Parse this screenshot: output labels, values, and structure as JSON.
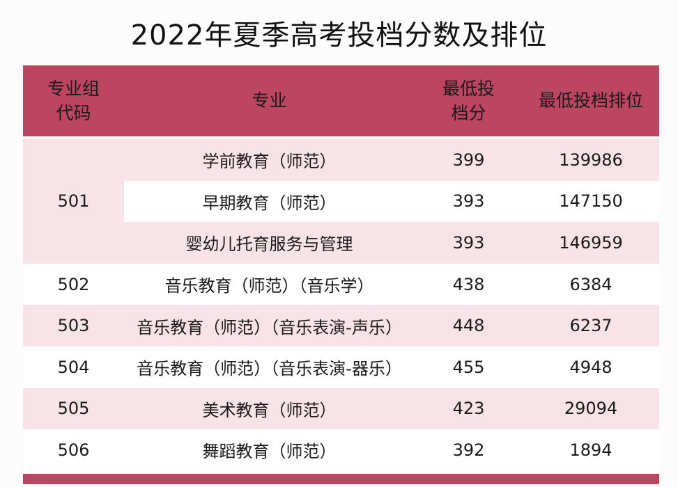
{
  "title": "2022年夏季高考投档分数及排位",
  "colors": {
    "header_bg": "#bc4561",
    "row_pink": "#f8e3e9",
    "row_white": "#ffffff",
    "footer_bar": "#bc4561",
    "text": "#1a1a1a"
  },
  "table": {
    "headers": {
      "group_code": "专业组\n代码",
      "major": "专业",
      "min_score": "最低投\n档分",
      "min_rank": "最低投档排位"
    },
    "group_501": {
      "code": "501"
    },
    "rows": [
      {
        "code": "501",
        "major": "学前教育（师范）",
        "score": "399",
        "rank": "139986"
      },
      {
        "code": "501",
        "major": "早期教育（师范）",
        "score": "393",
        "rank": "147150"
      },
      {
        "code": "501",
        "major": "婴幼儿托育服务与管理",
        "score": "393",
        "rank": "146959"
      },
      {
        "code": "502",
        "major": "音乐教育（师范）（音乐学）",
        "score": "438",
        "rank": "6384"
      },
      {
        "code": "503",
        "major": "音乐教育（师范）（音乐表演-声乐）",
        "score": "448",
        "rank": "6237"
      },
      {
        "code": "504",
        "major": "音乐教育（师范）（音乐表演-器乐）",
        "score": "455",
        "rank": "4948"
      },
      {
        "code": "505",
        "major": "美术教育（师范）",
        "score": "423",
        "rank": "29094"
      },
      {
        "code": "506",
        "major": "舞蹈教育（师范）",
        "score": "392",
        "rank": "1894"
      }
    ]
  }
}
